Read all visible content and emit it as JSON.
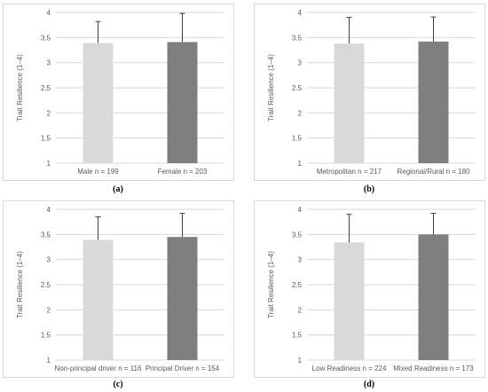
{
  "chart_data": [
    {
      "type": "bar",
      "panel_label": "(a)",
      "ylabel": "Trait Resilience (1–4)",
      "ylim": [
        1,
        4
      ],
      "yticks": [
        "1",
        "1.5",
        "2",
        "2.5",
        "3",
        "3.5",
        "4"
      ],
      "grid": true,
      "categories": [
        "Male n = 199",
        "Female n = 203"
      ],
      "values": [
        3.39,
        3.41
      ],
      "error_upper": [
        0.43,
        0.57
      ],
      "bar_colors": [
        "#d9d9d9",
        "#7f7f7f"
      ]
    },
    {
      "type": "bar",
      "panel_label": "(b)",
      "ylabel": "Trait Resilience (1–4)",
      "ylim": [
        1,
        4
      ],
      "yticks": [
        "1",
        "1.5",
        "2",
        "2.5",
        "3",
        "3.5",
        "4"
      ],
      "grid": true,
      "categories": [
        "Metropolitan n = 217",
        "Regional/Rural n = 180"
      ],
      "values": [
        3.38,
        3.42
      ],
      "error_upper": [
        0.52,
        0.49
      ],
      "bar_colors": [
        "#d9d9d9",
        "#7f7f7f"
      ]
    },
    {
      "type": "bar",
      "panel_label": "(c)",
      "ylabel": "Trait Resilience (1–4)",
      "ylim": [
        1,
        4
      ],
      "yticks": [
        "1",
        "1.5",
        "2",
        "2.5",
        "3",
        "3.5",
        "4"
      ],
      "grid": true,
      "categories": [
        "Non-principal driver n = 116",
        "Principal Driver n = 154"
      ],
      "values": [
        3.39,
        3.45
      ],
      "error_upper": [
        0.46,
        0.47
      ],
      "bar_colors": [
        "#d9d9d9",
        "#7f7f7f"
      ]
    },
    {
      "type": "bar",
      "panel_label": "(d)",
      "ylabel": "Trait Resilience (1–4)",
      "ylim": [
        1,
        4
      ],
      "yticks": [
        "1",
        "1.5",
        "2",
        "2.5",
        "3",
        "3.5",
        "4"
      ],
      "grid": true,
      "categories": [
        "Low Readiness  n = 224",
        "Mixed Readiness  n = 173"
      ],
      "values": [
        3.34,
        3.5
      ],
      "error_upper": [
        0.56,
        0.42
      ],
      "bar_colors": [
        "#d9d9d9",
        "#7f7f7f"
      ]
    }
  ],
  "colors": {
    "grid": "#d9d9d9",
    "axis_text": "#595959",
    "error_bar": "#404040"
  }
}
